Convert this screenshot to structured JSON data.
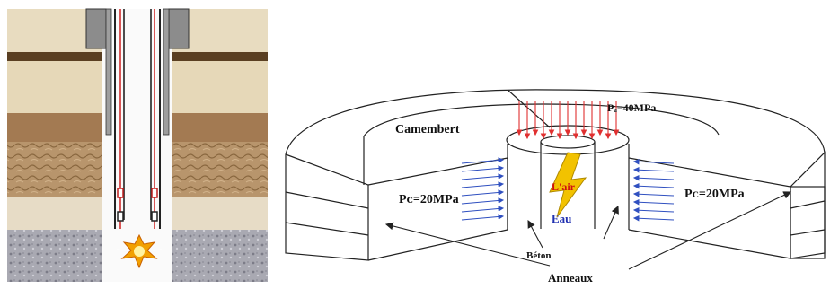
{
  "wellbore": {
    "description_hidden": ""
  },
  "model": {
    "camembert_label": "Camembert",
    "axial_pressure_label": "Pₐ=40MPa",
    "confining_left_label": "Pᴄ=20MPa",
    "confining_right_label": "Pᴄ=20MPa",
    "air_label": "L'air",
    "water_label": "Eau",
    "concrete_label": "Béton",
    "rings_label": "Anneaux"
  },
  "colors": {
    "pressure_arrows": "#e03030",
    "confining_arrows": "#3050c0",
    "flame": "#f2c200",
    "air_text": "#d01010",
    "water_text": "#2030b0",
    "outline": "#222222"
  }
}
